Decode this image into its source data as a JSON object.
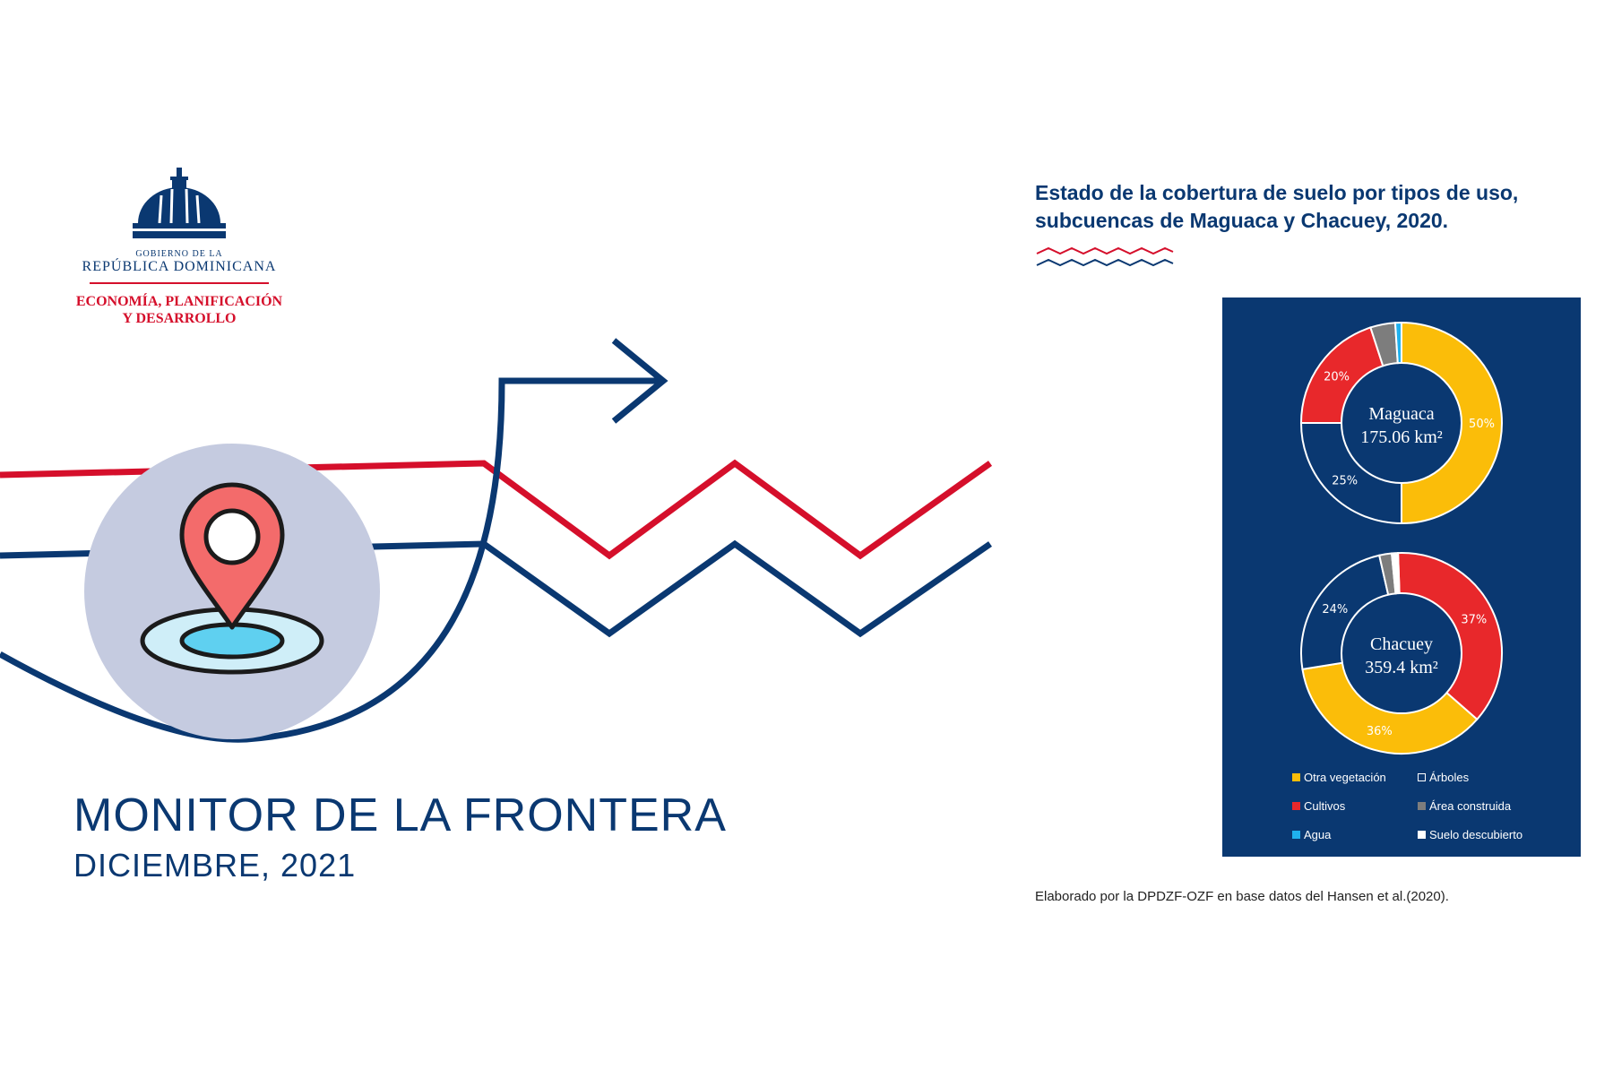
{
  "logo": {
    "govt_line1": "GOBIERNO DE LA",
    "govt_line2": "REPÚBLICA DOMINICANA",
    "ministry_line1": "ECONOMÍA, PLANIFICACIÓN",
    "ministry_line2": "Y DESARROLLO"
  },
  "main_title": "MONITOR DE LA FRONTERA",
  "main_date": "DICIEMBRE, 2021",
  "figure_title": "Estado de la cobertura de suelo por tipos de uso, subcuencas de Maguaca y Chacuey, 2020.",
  "source": "Elaborado por la DPDZF-OZF en base datos del Hansen et al.(2020).",
  "colors": {
    "navy": "#0a3871",
    "red": "#d50f2b",
    "circle": "#c5cbe0",
    "otra_vegetacion": "#fbbd09",
    "arboles": "#0a3871",
    "cultivos": "#e8282b",
    "area_construida": "#7d7d7d",
    "agua": "#1fb1ee",
    "suelo_descubierto": "#ffffff"
  },
  "icons": [
    "dome-logo-icon",
    "map-pin-icon",
    "arrow-right-icon"
  ],
  "chart_data": [
    {
      "type": "pie",
      "donut": true,
      "center_label": "Maguaca",
      "center_value": "175.06 km²",
      "categories": [
        "Otra vegetación",
        "Árboles",
        "Cultivos",
        "Área construida",
        "Agua",
        "Suelo descubierto"
      ],
      "values": [
        50,
        25,
        20,
        4,
        1,
        0
      ],
      "data_labels": [
        "50%",
        "25%",
        "20%",
        "",
        "",
        ""
      ]
    },
    {
      "type": "pie",
      "donut": true,
      "center_label": "Chacuey",
      "center_value": "359.4 km²",
      "categories": [
        "Cultivos",
        "Otra vegetación",
        "Árboles",
        "Área construida",
        "Agua",
        "Suelo descubierto"
      ],
      "values": [
        37,
        36,
        24,
        2,
        0,
        1
      ],
      "data_labels": [
        "37%",
        "36%",
        "24%",
        "",
        "",
        ""
      ]
    }
  ],
  "legend": [
    {
      "label": "Otra vegetación",
      "color": "#fbbd09"
    },
    {
      "label": "Árboles",
      "color": "#0a3871"
    },
    {
      "label": "Cultivos",
      "color": "#e8282b"
    },
    {
      "label": "Área construida",
      "color": "#7d7d7d"
    },
    {
      "label": "Agua",
      "color": "#1fb1ee"
    },
    {
      "label": "Suelo descubierto",
      "color": "#ffffff"
    }
  ]
}
